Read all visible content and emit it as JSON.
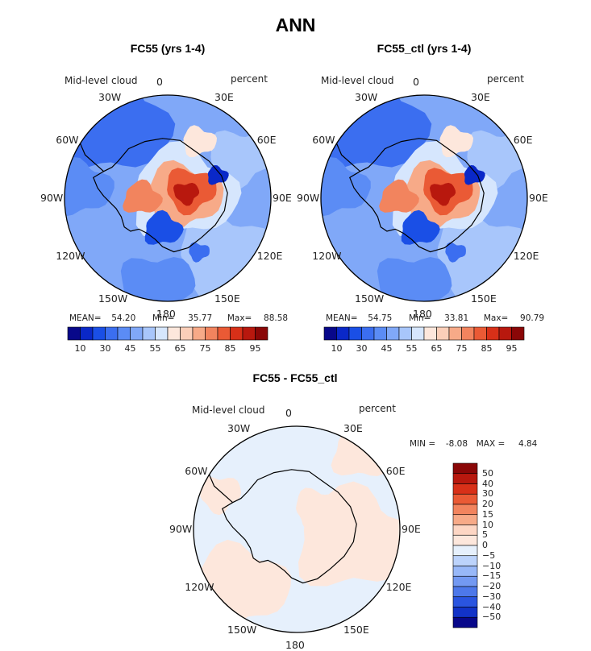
{
  "title": "ANN",
  "colors": {
    "abs_scale": [
      "#08088a",
      "#0a28c8",
      "#1a4fe6",
      "#3b6ef0",
      "#5b8cf5",
      "#80a8f8",
      "#a8c6fb",
      "#d6e6fd",
      "#fde7dc",
      "#fbcfb9",
      "#f7aa88",
      "#f2845e",
      "#ea5a35",
      "#d83018",
      "#b8180e",
      "#8a0707"
    ],
    "diff_scale": [
      "#8a0707",
      "#b8180e",
      "#d83018",
      "#ea5a35",
      "#f2845e",
      "#f7aa88",
      "#fdd6c4",
      "#fde7dc",
      "#e6f0fc",
      "#bcd3fb",
      "#98b8f8",
      "#7399f2",
      "#4d78ea",
      "#2a55e0",
      "#1233c8",
      "#08088a"
    ]
  },
  "chart_data": [
    {
      "type": "heatmap",
      "projection": "polar-stereographic-south",
      "title": "FC55 (yrs 1-4)",
      "variable": "Mid-level cloud",
      "units": "percent",
      "longitude_labels": [
        "0",
        "30E",
        "60E",
        "90E",
        "120E",
        "150E",
        "180",
        "150W",
        "120W",
        "90W",
        "60W",
        "30W"
      ],
      "stats": {
        "mean_label": "MEAN=",
        "mean": "54.20",
        "min_label": "Min=",
        "min": "35.77",
        "max_label": "Max=",
        "max": "88.58"
      },
      "colorbar_ticks": [
        "10",
        "30",
        "45",
        "55",
        "65",
        "75",
        "85",
        "95"
      ]
    },
    {
      "type": "heatmap",
      "projection": "polar-stereographic-south",
      "title": "FC55_ctl (yrs 1-4)",
      "variable": "Mid-level cloud",
      "units": "percent",
      "longitude_labels": [
        "0",
        "30E",
        "60E",
        "90E",
        "120E",
        "150E",
        "180",
        "150W",
        "120W",
        "90W",
        "60W",
        "30W"
      ],
      "stats": {
        "mean_label": "MEAN=",
        "mean": "54.75",
        "min_label": "Min=",
        "min": "33.81",
        "max_label": "Max=",
        "max": "90.79"
      },
      "colorbar_ticks": [
        "10",
        "30",
        "45",
        "55",
        "65",
        "75",
        "85",
        "95"
      ]
    },
    {
      "type": "heatmap",
      "projection": "polar-stereographic-south",
      "title": "FC55 - FC55_ctl",
      "variable": "Mid-level cloud",
      "units": "percent",
      "longitude_labels": [
        "0",
        "30E",
        "60E",
        "90E",
        "120E",
        "150E",
        "180",
        "150W",
        "120W",
        "90W",
        "60W",
        "30W"
      ],
      "stats": {
        "min_label": "MIN =",
        "min": "-8.08",
        "max_label": "MAX =",
        "max": "4.84"
      },
      "colorbar_ticks": [
        "50",
        "40",
        "30",
        "20",
        "15",
        "10",
        "5",
        "0",
        "−5",
        "−10",
        "−15",
        "−20",
        "−30",
        "−40",
        "−50"
      ]
    }
  ]
}
